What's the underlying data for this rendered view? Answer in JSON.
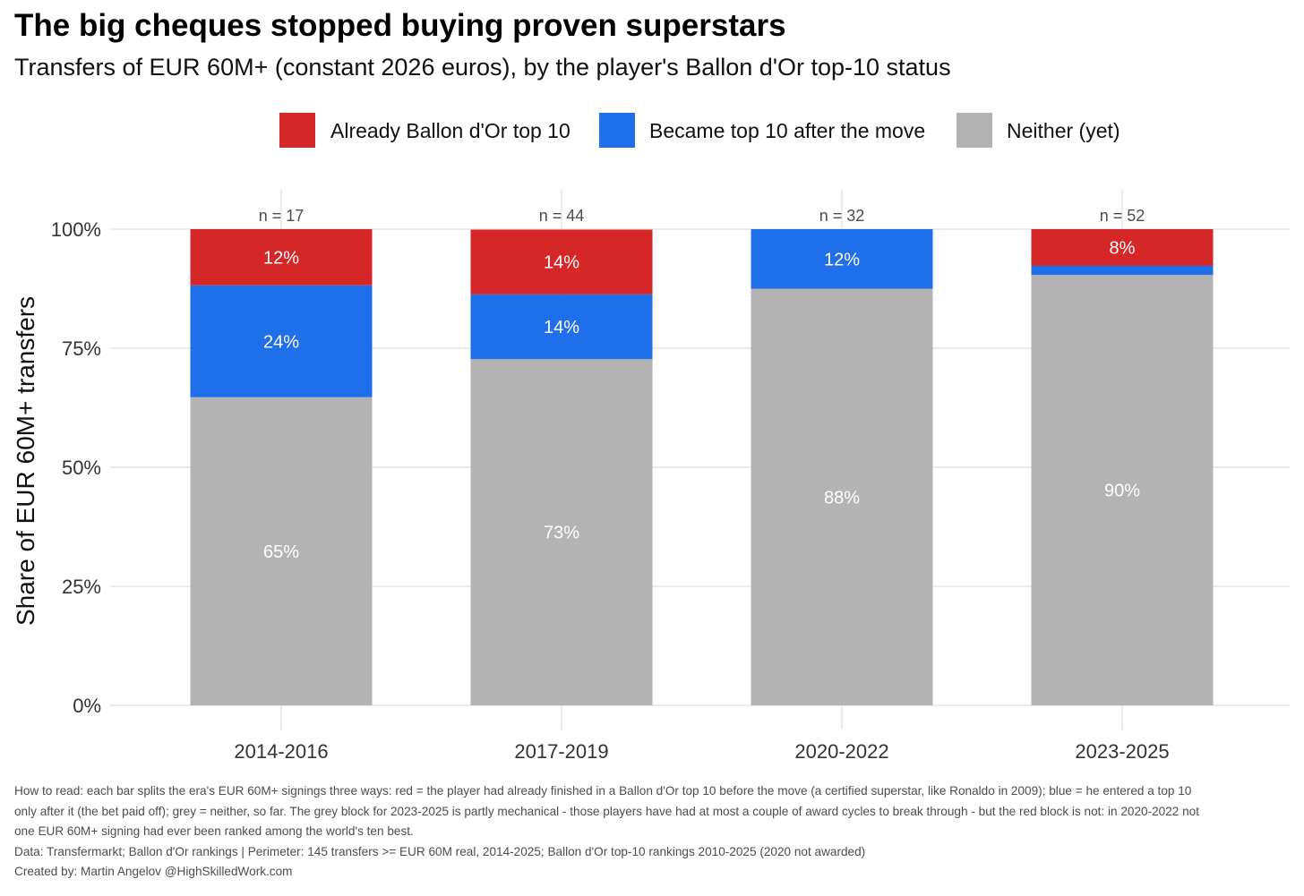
{
  "title": "The big cheques stopped buying proven superstars",
  "subtitle": "Transfers of EUR 60M+ (constant 2026 euros), by the player's Ballon d'Or top-10 status",
  "caption": {
    "how_to_read": "How to read: each bar splits the era's EUR 60M+ signings three ways: red = the player had already finished in a Ballon d'Or top 10 before the move (a certified superstar, like Ronaldo in 2009); blue = he entered a top 10 only after it (the bet paid off); grey = neither, so far. The grey block for 2023-2025 is partly mechanical - those players have had at most a couple of award cycles to break through - but the red block is not: in 2020-2022 not one EUR 60M+ signing had ever been ranked among the world's ten best.",
    "data": "Data: Transfermarkt; Ballon d'Or rankings | Perimeter: 145 transfers >= EUR 60M real, 2014-2025; Ballon d'Or top-10 rankings 2010-2025 (2020 not awarded)",
    "credit": "Created by: Martin Angelov @HighSkilledWork.com"
  },
  "chart_data": {
    "type": "bar",
    "stacked": true,
    "categories": [
      "2014-2016",
      "2017-2019",
      "2020-2022",
      "2023-2025"
    ],
    "counts": [
      "n = 17",
      "n = 44",
      "n = 32",
      "n = 52"
    ],
    "series": [
      {
        "name": "Neither (yet)",
        "color": "#b3b3b3",
        "values": [
          64.7,
          72.7,
          87.5,
          90.4
        ],
        "labels": [
          "65%",
          "73%",
          "88%",
          "90%"
        ]
      },
      {
        "name": "Became top 10 after the move",
        "color": "#1f6feb",
        "values": [
          23.5,
          13.6,
          12.5,
          1.9
        ],
        "labels": [
          "24%",
          "14%",
          "12%",
          ""
        ]
      },
      {
        "name": "Already Ballon d'Or top 10",
        "color": "#d62728",
        "values": [
          11.8,
          13.6,
          0,
          7.7
        ],
        "labels": [
          "12%",
          "14%",
          "",
          "8%"
        ]
      }
    ],
    "legend_order": [
      "Already Ballon d'Or top 10",
      "Became top 10 after the move",
      "Neither (yet)"
    ],
    "legend_position": "top",
    "ylabel": "Share of EUR 60M+ transfers",
    "xlabel": "",
    "ylim": [
      0,
      100
    ],
    "yticks": [
      0,
      25,
      50,
      75,
      100
    ],
    "ytick_labels": [
      "0%",
      "25%",
      "50%",
      "75%",
      "100%"
    ],
    "grid": true
  }
}
